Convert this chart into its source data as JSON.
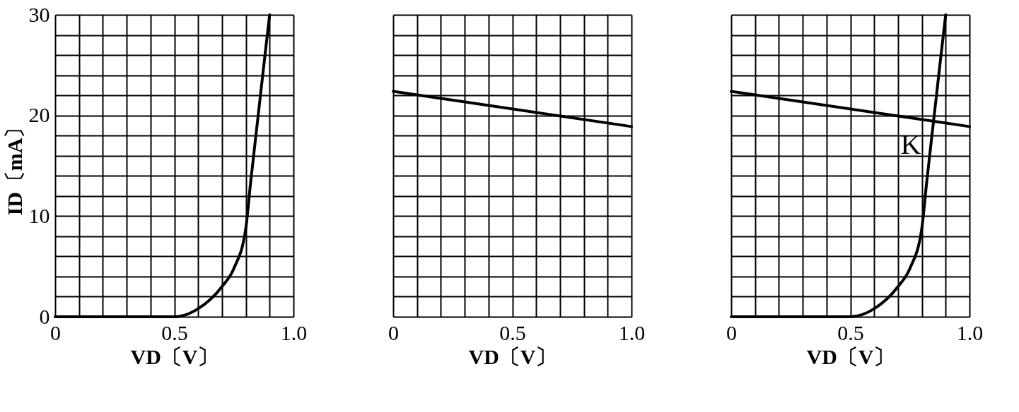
{
  "chart_data": [
    {
      "type": "line",
      "xlabel": "VD〔V〕",
      "ylabel": "ID〔mA〕",
      "xlim": [
        0,
        1.0
      ],
      "ylim": [
        0,
        30
      ],
      "xticks": [
        0,
        {
          "value": 0.1,
          "label": null
        },
        {
          "value": 0.2,
          "label": null
        },
        {
          "value": 0.3,
          "label": null
        },
        {
          "value": 0.4,
          "label": null
        },
        0.5,
        {
          "value": 0.6,
          "label": null
        },
        {
          "value": 0.7,
          "label": null
        },
        {
          "value": 0.8,
          "label": null
        },
        {
          "value": 0.9,
          "label": null
        },
        {
          "value": 1.0,
          "label": "1.0"
        }
      ],
      "yticks": [
        0,
        {
          "value": 2,
          "label": null
        },
        {
          "value": 4,
          "label": null
        },
        {
          "value": 6,
          "label": null
        },
        {
          "value": 8,
          "label": null
        },
        10,
        {
          "value": 12,
          "label": null
        },
        {
          "value": 14,
          "label": null
        },
        {
          "value": 16,
          "label": null
        },
        {
          "value": 18,
          "label": null
        },
        20,
        {
          "value": 22,
          "label": null
        },
        {
          "value": 24,
          "label": null
        },
        {
          "value": 26,
          "label": null
        },
        {
          "value": 28,
          "label": null
        },
        30
      ],
      "grid": true,
      "series": [
        {
          "color": "#000000",
          "x": [
            0,
            0.5,
            0.6,
            0.7,
            0.75,
            0.8,
            0.82,
            0.85,
            0.88,
            0.9
          ],
          "values": [
            0,
            0,
            0.8,
            3,
            4.8,
            8.8,
            13.3,
            19.6,
            25.9,
            30
          ]
        }
      ]
    },
    {
      "type": "line",
      "xlabel": "VD〔V〕",
      "xlim": [
        0,
        1.0
      ],
      "ylim": [
        0,
        30
      ],
      "tick_labels": "x",
      "xticks": [
        0,
        {
          "value": 0.1,
          "label": null
        },
        {
          "value": 0.2,
          "label": null
        },
        {
          "value": 0.3,
          "label": null
        },
        {
          "value": 0.4,
          "label": null
        },
        0.5,
        {
          "value": 0.6,
          "label": null
        },
        {
          "value": 0.7,
          "label": null
        },
        {
          "value": 0.8,
          "label": null
        },
        {
          "value": 0.9,
          "label": null
        },
        {
          "value": 1.0,
          "label": "1.0"
        }
      ],
      "yticks": [
        {
          "value": 0,
          "label": null
        },
        {
          "value": 2,
          "label": null
        },
        {
          "value": 4,
          "label": null
        },
        {
          "value": 6,
          "label": null
        },
        {
          "value": 8,
          "label": null
        },
        {
          "value": 10,
          "label": null
        },
        {
          "value": 12,
          "label": null
        },
        {
          "value": 14,
          "label": null
        },
        {
          "value": 16,
          "label": null
        },
        {
          "value": 18,
          "label": null
        },
        {
          "value": 20,
          "label": null
        },
        {
          "value": 22,
          "label": null
        },
        {
          "value": 24,
          "label": null
        },
        {
          "value": 26,
          "label": null
        },
        {
          "value": 28,
          "label": null
        },
        {
          "value": 30,
          "label": null
        }
      ],
      "grid": true,
      "series": [
        {
          "color": "#000000",
          "x": [
            0,
            1.0
          ],
          "values": [
            22.4,
            18.9
          ]
        }
      ]
    },
    {
      "type": "line",
      "xlabel": "VD〔V〕",
      "xlim": [
        0,
        1.0
      ],
      "ylim": [
        0,
        30
      ],
      "tick_labels": "x",
      "xticks": [
        0,
        {
          "value": 0.1,
          "label": null
        },
        {
          "value": 0.2,
          "label": null
        },
        {
          "value": 0.3,
          "label": null
        },
        {
          "value": 0.4,
          "label": null
        },
        0.5,
        {
          "value": 0.6,
          "label": null
        },
        {
          "value": 0.7,
          "label": null
        },
        {
          "value": 0.8,
          "label": null
        },
        {
          "value": 0.9,
          "label": null
        },
        {
          "value": 1.0,
          "label": "1.0"
        }
      ],
      "yticks": [
        {
          "value": 0,
          "label": null
        },
        {
          "value": 2,
          "label": null
        },
        {
          "value": 4,
          "label": null
        },
        {
          "value": 6,
          "label": null
        },
        {
          "value": 8,
          "label": null
        },
        {
          "value": 10,
          "label": null
        },
        {
          "value": 12,
          "label": null
        },
        {
          "value": 14,
          "label": null
        },
        {
          "value": 16,
          "label": null
        },
        {
          "value": 18,
          "label": null
        },
        {
          "value": 20,
          "label": null
        },
        {
          "value": 22,
          "label": null
        },
        {
          "value": 24,
          "label": null
        },
        {
          "value": 26,
          "label": null
        },
        {
          "value": 28,
          "label": null
        },
        {
          "value": 30,
          "label": null
        }
      ],
      "grid": true,
      "annotations": [
        {
          "text": "K",
          "x": 0.85,
          "y": 19.4
        }
      ],
      "series": [
        {
          "color": "#000000",
          "x": [
            0,
            0.5,
            0.6,
            0.7,
            0.75,
            0.8,
            0.82,
            0.85,
            0.88,
            0.9
          ],
          "values": [
            0,
            0,
            0.8,
            3,
            4.8,
            8.8,
            13.3,
            19.6,
            25.9,
            30
          ]
        },
        {
          "color": "#000000",
          "x": [
            0,
            1.0
          ],
          "values": [
            22.4,
            18.9
          ]
        }
      ]
    }
  ]
}
